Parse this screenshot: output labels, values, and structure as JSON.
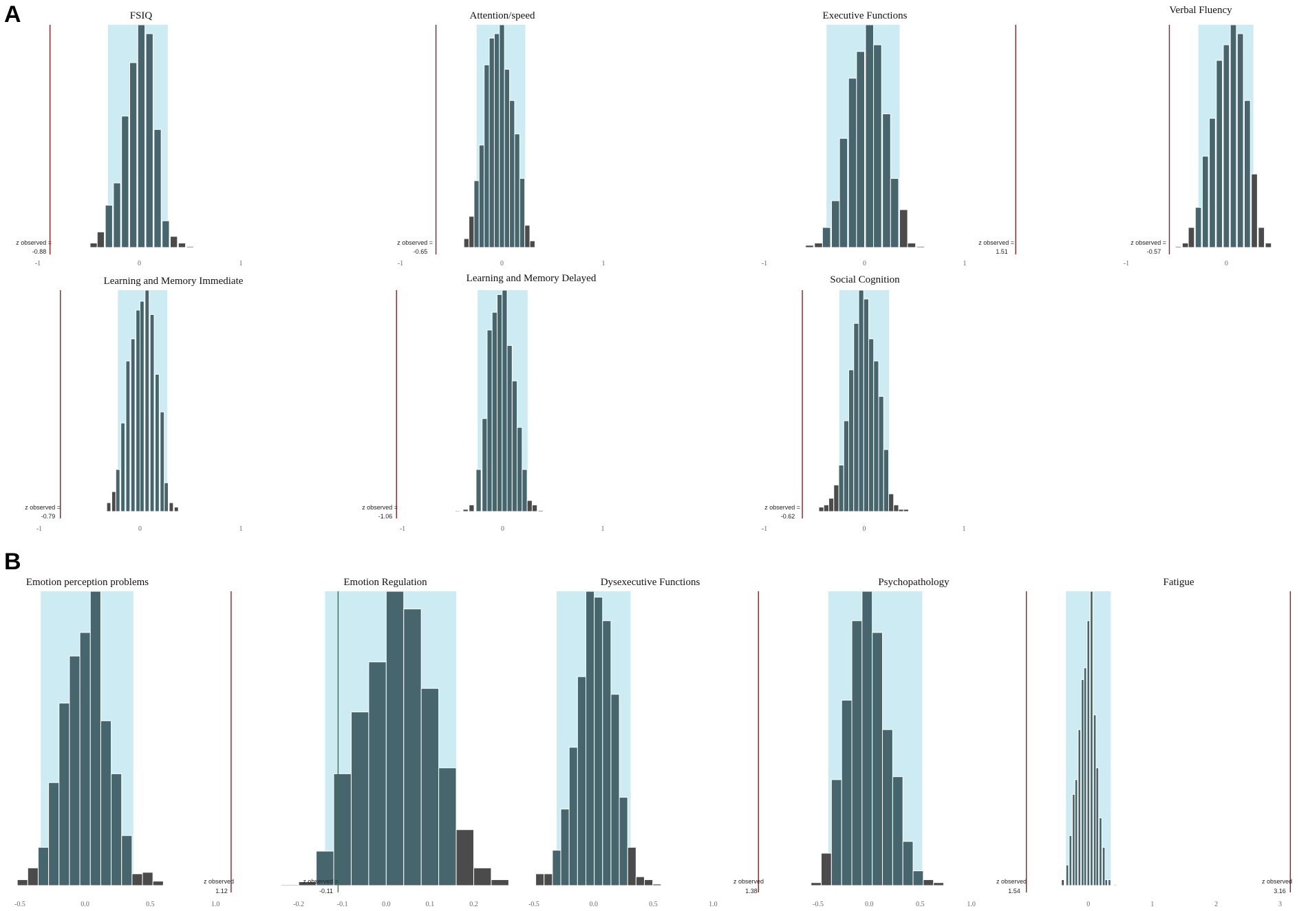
{
  "panel_labels": [
    "A",
    "B"
  ],
  "colors": {
    "band": "#cdebf2",
    "bar_inside": "#46656c",
    "bar_outside": "#4b4b4b",
    "observed_line": "#8b2020",
    "observed_line_alt": "#2e7d32"
  },
  "chart_data": [
    {
      "panel": "A",
      "type": "histogram",
      "title": "FSIQ",
      "xlim": [
        -1,
        1
      ],
      "ticks": [
        -1,
        0,
        1
      ],
      "ci": [
        -0.31,
        0.28
      ],
      "z_observed_label": "z observed =",
      "z_observed": -0.88,
      "z_observed_text": "-0.88",
      "line_color": "observed_line",
      "bins": [
        {
          "x": -0.45,
          "h": 0.02
        },
        {
          "x": -0.38,
          "h": 0.07
        },
        {
          "x": -0.3,
          "h": 0.19
        },
        {
          "x": -0.22,
          "h": 0.29
        },
        {
          "x": -0.14,
          "h": 0.59
        },
        {
          "x": -0.06,
          "h": 0.83
        },
        {
          "x": 0.02,
          "h": 1.0
        },
        {
          "x": 0.1,
          "h": 0.96
        },
        {
          "x": 0.18,
          "h": 0.53
        },
        {
          "x": 0.26,
          "h": 0.12
        },
        {
          "x": 0.34,
          "h": 0.05
        },
        {
          "x": 0.42,
          "h": 0.02
        },
        {
          "x": 0.5,
          "h": 0.005
        },
        {
          "x": 0.58,
          "h": 0.003
        }
      ]
    },
    {
      "panel": "A",
      "type": "histogram",
      "title": "Attention/speed",
      "xlim": [
        -1,
        1
      ],
      "ticks": [
        -1,
        0,
        1
      ],
      "ci": [
        -0.25,
        0.23
      ],
      "z_observed_label": "z observed =",
      "z_observed": -0.65,
      "z_observed_text": "-0.65",
      "line_color": "observed_line",
      "bins": [
        {
          "x": -0.4,
          "h": 0.003
        },
        {
          "x": -0.35,
          "h": 0.04
        },
        {
          "x": -0.3,
          "h": 0.14
        },
        {
          "x": -0.25,
          "h": 0.3
        },
        {
          "x": -0.2,
          "h": 0.46
        },
        {
          "x": -0.15,
          "h": 0.82
        },
        {
          "x": -0.1,
          "h": 0.94
        },
        {
          "x": -0.05,
          "h": 0.96
        },
        {
          "x": 0.0,
          "h": 1.0
        },
        {
          "x": 0.05,
          "h": 0.8
        },
        {
          "x": 0.1,
          "h": 0.66
        },
        {
          "x": 0.15,
          "h": 0.51
        },
        {
          "x": 0.2,
          "h": 0.31
        },
        {
          "x": 0.25,
          "h": 0.1
        },
        {
          "x": 0.3,
          "h": 0.03
        }
      ]
    },
    {
      "panel": "A",
      "type": "histogram",
      "title": "Executive Functions",
      "xlim": [
        -1,
        1
      ],
      "ticks": [
        -1,
        0,
        1
      ],
      "ci": [
        -0.38,
        0.35
      ],
      "z_observed_label": "z observed =",
      "z_observed": 1.51,
      "z_observed_text": "1.51",
      "line_color": "observed_line",
      "bins": [
        {
          "x": -0.63,
          "h": 0.003
        },
        {
          "x": -0.55,
          "h": 0.01
        },
        {
          "x": -0.46,
          "h": 0.02
        },
        {
          "x": -0.38,
          "h": 0.09
        },
        {
          "x": -0.29,
          "h": 0.21
        },
        {
          "x": -0.21,
          "h": 0.49
        },
        {
          "x": -0.12,
          "h": 0.76
        },
        {
          "x": -0.04,
          "h": 0.88
        },
        {
          "x": 0.05,
          "h": 1.0
        },
        {
          "x": 0.13,
          "h": 0.91
        },
        {
          "x": 0.22,
          "h": 0.6
        },
        {
          "x": 0.3,
          "h": 0.31
        },
        {
          "x": 0.39,
          "h": 0.17
        },
        {
          "x": 0.47,
          "h": 0.02
        },
        {
          "x": 0.56,
          "h": 0.005
        },
        {
          "x": 0.64,
          "h": 0.002
        }
      ]
    },
    {
      "panel": "A",
      "type": "histogram",
      "title": "Verbal Fluency",
      "xlim": [
        -1,
        0.5
      ],
      "ticks": [
        -1,
        0
      ],
      "ci": [
        -0.28,
        0.27
      ],
      "z_observed_label": "z observed =",
      "z_observed": -0.57,
      "z_observed_text": "-0.57",
      "line_color": "observed_line",
      "bins": [
        {
          "x": -0.55,
          "h": 0.003
        },
        {
          "x": -0.48,
          "h": 0.005
        },
        {
          "x": -0.41,
          "h": 0.02
        },
        {
          "x": -0.35,
          "h": 0.09
        },
        {
          "x": -0.28,
          "h": 0.18
        },
        {
          "x": -0.21,
          "h": 0.41
        },
        {
          "x": -0.14,
          "h": 0.58
        },
        {
          "x": -0.07,
          "h": 0.84
        },
        {
          "x": 0.0,
          "h": 0.91
        },
        {
          "x": 0.07,
          "h": 1.0
        },
        {
          "x": 0.14,
          "h": 0.96
        },
        {
          "x": 0.21,
          "h": 0.66
        },
        {
          "x": 0.28,
          "h": 0.33
        },
        {
          "x": 0.35,
          "h": 0.09
        },
        {
          "x": 0.42,
          "h": 0.02
        }
      ]
    },
    {
      "panel": "A",
      "type": "histogram",
      "title": "Learning and Memory Immediate",
      "xlim": [
        -1,
        1
      ],
      "ticks": [
        -1,
        0,
        1
      ],
      "ci": [
        -0.22,
        0.27
      ],
      "z_observed_label": "z observed =",
      "z_observed": -0.79,
      "z_observed_text": "-0.79",
      "line_color": "observed_line",
      "bins": [
        {
          "x": -0.36,
          "h": 0.002
        },
        {
          "x": -0.31,
          "h": 0.04
        },
        {
          "x": -0.26,
          "h": 0.09
        },
        {
          "x": -0.22,
          "h": 0.19
        },
        {
          "x": -0.17,
          "h": 0.4
        },
        {
          "x": -0.12,
          "h": 0.68
        },
        {
          "x": -0.07,
          "h": 0.78
        },
        {
          "x": -0.02,
          "h": 0.91
        },
        {
          "x": 0.02,
          "h": 0.95
        },
        {
          "x": 0.07,
          "h": 1.0
        },
        {
          "x": 0.12,
          "h": 0.89
        },
        {
          "x": 0.17,
          "h": 0.62
        },
        {
          "x": 0.22,
          "h": 0.45
        },
        {
          "x": 0.26,
          "h": 0.13
        },
        {
          "x": 0.31,
          "h": 0.04
        },
        {
          "x": 0.36,
          "h": 0.02
        }
      ]
    },
    {
      "panel": "A",
      "type": "histogram",
      "title": "Learning and Memory Delayed",
      "xlim": [
        -1,
        1
      ],
      "ticks": [
        -1,
        0,
        1
      ],
      "ci": [
        -0.25,
        0.25
      ],
      "z_observed_label": "z observed =",
      "z_observed": -1.06,
      "z_observed_text": "-1.06",
      "line_color": "observed_line",
      "bins": [
        {
          "x": -0.45,
          "h": 0.004
        },
        {
          "x": -0.37,
          "h": 0.01
        },
        {
          "x": -0.31,
          "h": 0.03
        },
        {
          "x": -0.24,
          "h": 0.19
        },
        {
          "x": -0.18,
          "h": 0.42
        },
        {
          "x": -0.13,
          "h": 0.82
        },
        {
          "x": -0.08,
          "h": 0.9
        },
        {
          "x": -0.03,
          "h": 0.98
        },
        {
          "x": 0.02,
          "h": 1.0
        },
        {
          "x": 0.07,
          "h": 0.75
        },
        {
          "x": 0.12,
          "h": 0.59
        },
        {
          "x": 0.17,
          "h": 0.38
        },
        {
          "x": 0.22,
          "h": 0.19
        },
        {
          "x": 0.27,
          "h": 0.05
        },
        {
          "x": 0.32,
          "h": 0.03
        },
        {
          "x": 0.38,
          "h": 0.005
        }
      ]
    },
    {
      "panel": "A",
      "type": "histogram",
      "title": "Social Cognition",
      "xlim": [
        -1,
        1
      ],
      "ticks": [
        -1,
        0,
        1
      ],
      "ci": [
        -0.25,
        0.25
      ],
      "z_observed_label": "z observed =",
      "z_observed": -0.62,
      "z_observed_text": "-0.62",
      "line_color": "observed_line",
      "bins": [
        {
          "x": -0.43,
          "h": 0.02
        },
        {
          "x": -0.38,
          "h": 0.03
        },
        {
          "x": -0.33,
          "h": 0.06
        },
        {
          "x": -0.28,
          "h": 0.12
        },
        {
          "x": -0.23,
          "h": 0.21
        },
        {
          "x": -0.18,
          "h": 0.41
        },
        {
          "x": -0.13,
          "h": 0.64
        },
        {
          "x": -0.08,
          "h": 0.85
        },
        {
          "x": -0.03,
          "h": 1.0
        },
        {
          "x": 0.02,
          "h": 0.96
        },
        {
          "x": 0.07,
          "h": 0.78
        },
        {
          "x": 0.12,
          "h": 0.68
        },
        {
          "x": 0.17,
          "h": 0.52
        },
        {
          "x": 0.22,
          "h": 0.28
        },
        {
          "x": 0.27,
          "h": 0.08
        },
        {
          "x": 0.32,
          "h": 0.03
        },
        {
          "x": 0.37,
          "h": 0.01
        },
        {
          "x": 0.42,
          "h": 0.01
        }
      ]
    },
    {
      "panel": "B",
      "type": "histogram",
      "title": "Emotion perception problems",
      "xlim": [
        -0.6,
        1.3
      ],
      "ticks": [
        -0.5,
        0.0,
        0.5,
        1.0
      ],
      "tick_labels": [
        "-0.5",
        "0.0",
        "0.5",
        "1.0"
      ],
      "ci": [
        -0.34,
        0.37
      ],
      "z_observed_label": "z observed",
      "z_observed": 1.12,
      "z_observed_text": "1.12",
      "line_color": "observed_line",
      "bins": [
        {
          "x": -0.48,
          "h": 0.02
        },
        {
          "x": -0.4,
          "h": 0.06
        },
        {
          "x": -0.32,
          "h": 0.13
        },
        {
          "x": -0.24,
          "h": 0.35
        },
        {
          "x": -0.16,
          "h": 0.62
        },
        {
          "x": -0.08,
          "h": 0.78
        },
        {
          "x": 0.0,
          "h": 0.86
        },
        {
          "x": 0.08,
          "h": 1.0
        },
        {
          "x": 0.16,
          "h": 0.56
        },
        {
          "x": 0.24,
          "h": 0.38
        },
        {
          "x": 0.32,
          "h": 0.17
        },
        {
          "x": 0.4,
          "h": 0.04
        },
        {
          "x": 0.48,
          "h": 0.045
        },
        {
          "x": 0.56,
          "h": 0.015
        }
      ]
    },
    {
      "panel": "B",
      "type": "histogram",
      "title": "Emotion Regulation",
      "xlim": [
        -0.26,
        0.27
      ],
      "ticks": [
        -0.2,
        -0.1,
        0.0,
        0.1,
        0.2
      ],
      "tick_labels": [
        "-0.2",
        "-0.1",
        "0.0",
        "0.1",
        "0.2"
      ],
      "ci": [
        -0.14,
        0.16
      ],
      "z_observed_label": "z observed =",
      "z_observed": -0.11,
      "z_observed_text": "-0.11",
      "line_color": "observed_line_alt",
      "bins": [
        {
          "x": -0.22,
          "h": 0.003
        },
        {
          "x": -0.18,
          "h": 0.013
        },
        {
          "x": -0.14,
          "h": 0.03
        },
        {
          "x": -0.14,
          "h": 0.117
        },
        {
          "x": -0.1,
          "h": 0.38
        },
        {
          "x": -0.06,
          "h": 0.59
        },
        {
          "x": -0.02,
          "h": 0.76
        },
        {
          "x": 0.02,
          "h": 1.0
        },
        {
          "x": 0.06,
          "h": 0.94
        },
        {
          "x": 0.1,
          "h": 0.67
        },
        {
          "x": 0.14,
          "h": 0.4
        },
        {
          "x": 0.18,
          "h": 0.19
        },
        {
          "x": 0.22,
          "h": 0.06
        },
        {
          "x": 0.26,
          "h": 0.02
        }
      ]
    },
    {
      "panel": "B",
      "type": "histogram",
      "title": "Dysexecutive Functions",
      "xlim": [
        -0.5,
        1.05
      ],
      "ticks": [
        -0.5,
        0.0,
        0.5,
        1.0
      ],
      "tick_labels": [
        "-0.5",
        "0.0",
        "0.5",
        "1.0"
      ],
      "ci": [
        -0.31,
        0.31
      ],
      "z_observed_label": "z observed",
      "z_observed": 1.38,
      "z_observed_text": "1.38",
      "line_color": "observed_line",
      "bins": [
        {
          "x": -0.45,
          "h": 0.04
        },
        {
          "x": -0.38,
          "h": 0.04
        },
        {
          "x": -0.31,
          "h": 0.12
        },
        {
          "x": -0.24,
          "h": 0.26
        },
        {
          "x": -0.17,
          "h": 0.47
        },
        {
          "x": -0.1,
          "h": 0.71
        },
        {
          "x": -0.03,
          "h": 1.0
        },
        {
          "x": 0.04,
          "h": 0.98
        },
        {
          "x": 0.11,
          "h": 0.9
        },
        {
          "x": 0.18,
          "h": 0.65
        },
        {
          "x": 0.25,
          "h": 0.3
        },
        {
          "x": 0.32,
          "h": 0.13
        },
        {
          "x": 0.39,
          "h": 0.03
        },
        {
          "x": 0.46,
          "h": 0.02
        },
        {
          "x": 0.53,
          "h": 0.005
        }
      ]
    },
    {
      "panel": "B",
      "type": "histogram",
      "title": "Psychopathology",
      "xlim": [
        -0.75,
        1.05
      ],
      "ticks": [
        -0.5,
        0.0,
        0.5,
        1.0
      ],
      "tick_labels": [
        "-0.5",
        "0.0",
        "0.5",
        "1.0"
      ],
      "ci": [
        -0.4,
        0.52
      ],
      "z_observed_label": "z observed",
      "z_observed": 1.54,
      "z_observed_text": "1.54",
      "line_color": "observed_line",
      "bins": [
        {
          "x": -0.62,
          "h": 0.002
        },
        {
          "x": -0.52,
          "h": 0.01
        },
        {
          "x": -0.42,
          "h": 0.11
        },
        {
          "x": -0.32,
          "h": 0.36
        },
        {
          "x": -0.22,
          "h": 0.63
        },
        {
          "x": -0.12,
          "h": 0.9
        },
        {
          "x": -0.02,
          "h": 1.0
        },
        {
          "x": 0.08,
          "h": 0.86
        },
        {
          "x": 0.18,
          "h": 0.53
        },
        {
          "x": 0.28,
          "h": 0.37
        },
        {
          "x": 0.38,
          "h": 0.15
        },
        {
          "x": 0.48,
          "h": 0.05
        },
        {
          "x": 0.58,
          "h": 0.02
        },
        {
          "x": 0.68,
          "h": 0.01
        }
      ]
    },
    {
      "panel": "B",
      "type": "histogram",
      "title": "Fatigue",
      "xlim": [
        -0.45,
        3.35
      ],
      "ticks": [
        0,
        1,
        2,
        3
      ],
      "ci": [
        -0.35,
        0.35
      ],
      "z_observed_label": "z observed",
      "z_observed": 3.16,
      "z_observed_text": "3.16",
      "line_color": "observed_line",
      "bins": [
        {
          "x": -0.4,
          "h": 0.02
        },
        {
          "x": -0.33,
          "h": 0.07
        },
        {
          "x": -0.28,
          "h": 0.17
        },
        {
          "x": -0.23,
          "h": 0.31
        },
        {
          "x": -0.19,
          "h": 0.36
        },
        {
          "x": -0.14,
          "h": 0.53
        },
        {
          "x": -0.09,
          "h": 0.7
        },
        {
          "x": -0.05,
          "h": 0.74
        },
        {
          "x": 0.0,
          "h": 0.9
        },
        {
          "x": 0.05,
          "h": 1.0
        },
        {
          "x": 0.1,
          "h": 0.58
        },
        {
          "x": 0.14,
          "h": 0.4
        },
        {
          "x": 0.19,
          "h": 0.23
        },
        {
          "x": 0.24,
          "h": 0.13
        },
        {
          "x": 0.28,
          "h": 0.02
        },
        {
          "x": 0.33,
          "h": 0.02
        },
        {
          "x": 0.42,
          "h": 0.003
        }
      ]
    }
  ]
}
